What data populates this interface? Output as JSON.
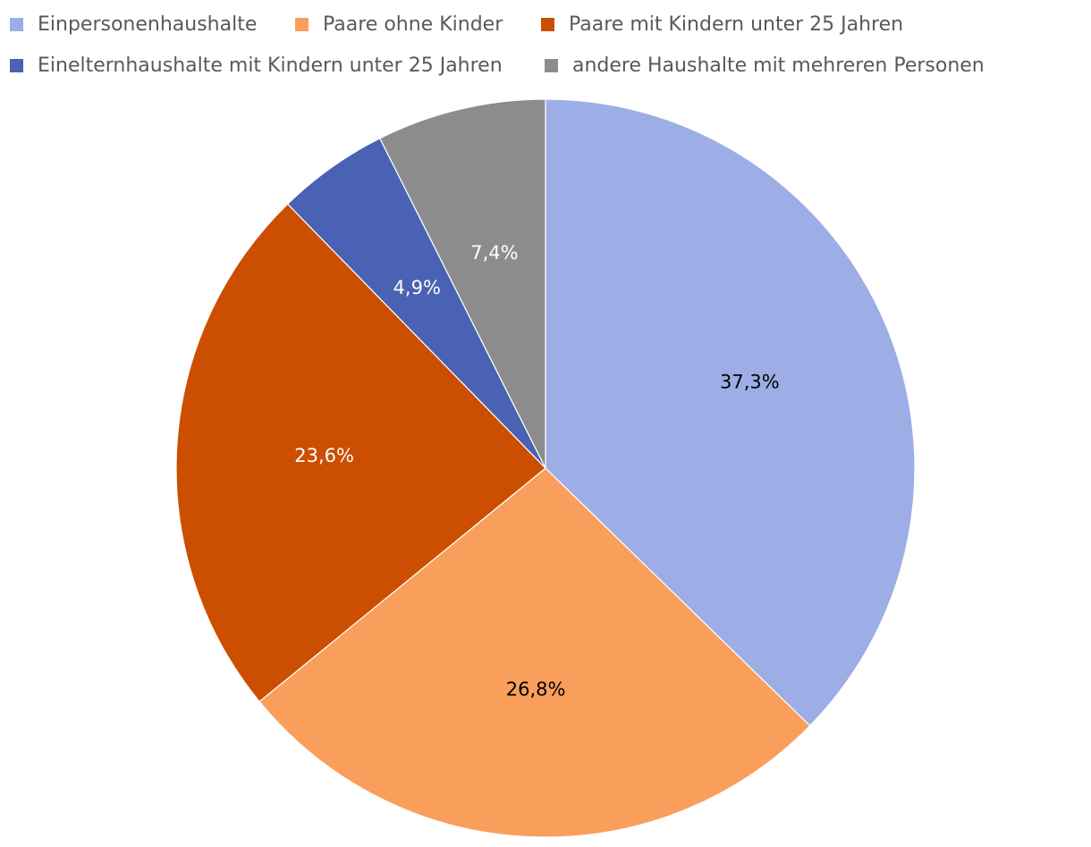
{
  "chart_data": {
    "type": "pie",
    "categories": [
      "Einpersonenhaushalte",
      "Paare ohne Kinder",
      "Paare mit Kindern unter 25 Jahren",
      "Einelternhaushalte mit Kindern unter 25 Jahren",
      "andere Haushalte mit mehreren Personen"
    ],
    "values": [
      37.3,
      26.8,
      23.6,
      4.9,
      7.4
    ],
    "data_labels": [
      "37,3%",
      "26,8%",
      "23,6%",
      "4,9%",
      "7,4%"
    ],
    "colors": [
      "#9DADE5",
      "#F99F5B",
      "#CC4E00",
      "#4A62B4",
      "#8C8C8C"
    ],
    "label_colors": [
      "#000000",
      "#000000",
      "#ffffff",
      "#ffffff",
      "#ffffff"
    ],
    "start_angle": "12 o'clock",
    "direction": "clockwise",
    "legend_position": "top",
    "title": ""
  }
}
